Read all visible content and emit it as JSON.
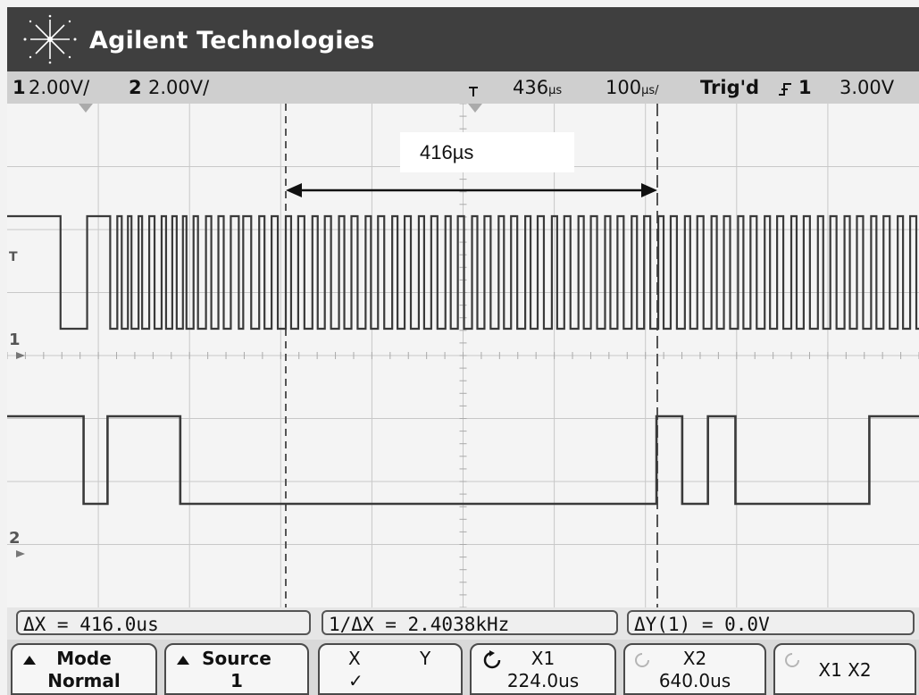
{
  "title_bar": {
    "brand": "Agilent Technologies",
    "logo_icon": "agilent-spark-icon"
  },
  "status": {
    "ch1_num": "1",
    "ch1_scale": "2.00V/",
    "ch2_num": "2",
    "ch2_scale": "2.00V/",
    "delay_icon": "trigger-position-icon",
    "delay": "436",
    "delay_unit": "µs",
    "timebase": "100",
    "timebase_unit": "µs/",
    "trig_status": "Trig'd",
    "trig_slope_icon": "rising-edge-icon",
    "trig_source": "1",
    "trig_level": "3.00V"
  },
  "graticule": {
    "delta_annotation": "416µs",
    "ch1_marker": "1",
    "ch2_marker": "2",
    "trig_marker": "T",
    "colors": {
      "background": "#f4f4f4",
      "grid": "#c8c8c8",
      "ch1_trace": "#3a3a3a",
      "ch2_trace": "#3a3a3a",
      "cursor": "#555555"
    }
  },
  "trace_data": {
    "ch1_transitions_us": [
      0,
      32,
      62,
      88,
      96,
      101,
      108,
      112,
      120,
      124,
      132,
      138,
      146,
      151,
      158,
      163,
      170,
      174,
      182,
      187,
      196,
      202,
      210,
      216,
      224,
      233,
      238,
      247,
      256,
      262,
      270,
      277,
      286,
      292,
      300,
      307,
      316,
      322,
      330,
      337,
      346,
      352,
      360,
      367,
      376,
      382,
      390,
      397,
      406,
      412,
      420,
      427,
      436,
      442,
      450,
      457,
      466,
      472,
      480,
      487,
      496,
      502,
      510,
      517,
      526,
      532,
      540,
      547,
      556,
      562,
      570,
      577,
      586,
      592,
      600,
      607,
      616,
      622,
      630,
      637,
      646,
      652,
      660,
      667,
      676,
      682,
      690,
      697,
      706,
      712,
      720,
      727,
      736,
      742,
      750,
      757,
      766,
      772,
      780,
      787,
      796,
      802,
      810,
      817,
      826,
      832,
      840,
      847,
      856,
      862,
      870,
      877,
      886,
      892,
      900,
      907,
      916,
      922,
      930,
      937,
      946,
      952,
      960,
      967,
      976,
      982,
      990,
      997
    ],
    "ch2_levels": [
      {
        "t_us": 0,
        "level": "high"
      },
      {
        "t_us": 58,
        "level": "low"
      },
      {
        "t_us": 85,
        "level": "high"
      },
      {
        "t_us": 167,
        "level": "low"
      },
      {
        "t_us": 704,
        "level": "high"
      },
      {
        "t_us": 733,
        "level": "low"
      },
      {
        "t_us": 762,
        "level": "high"
      },
      {
        "t_us": 793,
        "level": "low"
      },
      {
        "t_us": 944,
        "level": "high"
      }
    ]
  },
  "measurements": {
    "dx": "ΔX = 416.0us",
    "inv_dx": "1/ΔX = 2.4038kHz",
    "dy": "ΔY(1) = 0.0V"
  },
  "softkeys": {
    "mode_label": "Mode",
    "mode_value": "Normal",
    "source_label": "Source",
    "source_value": "1",
    "x_label": "X",
    "y_label": "Y",
    "xy_check": "✓",
    "x1_label": "X1",
    "x1_value": "224.0us",
    "x2_label": "X2",
    "x2_value": "640.0us",
    "x1x2_label": "X1 X2",
    "knob_icon": "entry-knob-icon"
  }
}
